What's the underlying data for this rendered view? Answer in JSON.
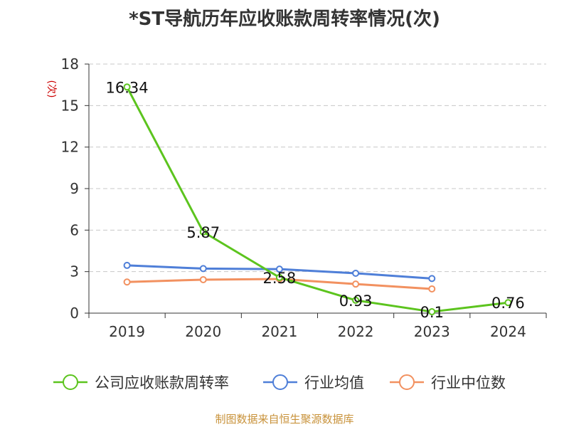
{
  "title": "*ST导航历年应收账款周转率情况(次)",
  "source_note": "制图数据来自恒生聚源数据库",
  "chart_data": {
    "type": "line",
    "title": "*ST导航历年应收账款周转率情况(次)",
    "ylabel": "(次)",
    "xlabel": "",
    "categories": [
      "2019",
      "2020",
      "2021",
      "2022",
      "2023",
      "2024"
    ],
    "ylim": [
      0,
      18
    ],
    "yticks": [
      0,
      3,
      6,
      9,
      12,
      15,
      18
    ],
    "grid": true,
    "legend_position": "bottom",
    "series": [
      {
        "name": "公司应收账款周转率",
        "color": "#5cc41e",
        "values": [
          16.34,
          5.87,
          2.58,
          0.93,
          0.1,
          0.76
        ],
        "labels": [
          "16.34",
          "5.87",
          "2.58",
          "0.93",
          "0.1",
          "0.76"
        ]
      },
      {
        "name": "行业均值",
        "color": "#4f7fd8",
        "values": [
          3.45,
          3.22,
          3.18,
          2.88,
          2.5,
          null
        ]
      },
      {
        "name": "行业中位数",
        "color": "#f29160",
        "values": [
          2.25,
          2.42,
          2.47,
          2.1,
          1.75,
          null
        ]
      }
    ]
  }
}
